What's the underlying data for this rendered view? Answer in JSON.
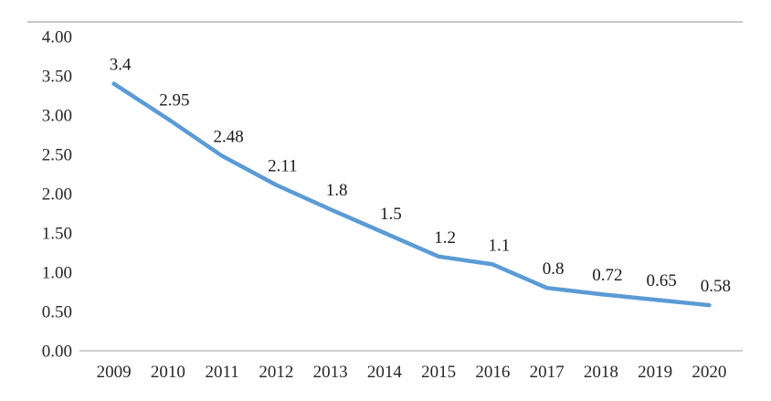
{
  "chart_data": {
    "type": "line",
    "title": "",
    "xlabel": "",
    "ylabel": "",
    "categories": [
      "2009",
      "2010",
      "2011",
      "2012",
      "2013",
      "2014",
      "2015",
      "2016",
      "2017",
      "2018",
      "2019",
      "2020"
    ],
    "values": [
      3.4,
      2.95,
      2.48,
      2.11,
      1.8,
      1.5,
      1.2,
      1.1,
      0.8,
      0.72,
      0.65,
      0.58
    ],
    "data_labels": [
      "3.4",
      "2.95",
      "2.48",
      "2.11",
      "1.8",
      "1.5",
      "1.2",
      "1.1",
      "0.8",
      "0.72",
      "0.65",
      "0.58"
    ],
    "ylim": [
      0,
      4
    ],
    "yticks": [
      0,
      0.5,
      1,
      1.5,
      2,
      2.5,
      3,
      3.5,
      4
    ],
    "ytick_labels": [
      "0.00",
      "0.50",
      "1.00",
      "1.50",
      "2.00",
      "2.50",
      "3.00",
      "3.50",
      "4.00"
    ],
    "grid": false,
    "legend_position": "none",
    "line_color": "#5b9bd5",
    "axis_color": "#bfbfbf",
    "border_color": "#a6a6a6",
    "text_color": "#262626"
  }
}
